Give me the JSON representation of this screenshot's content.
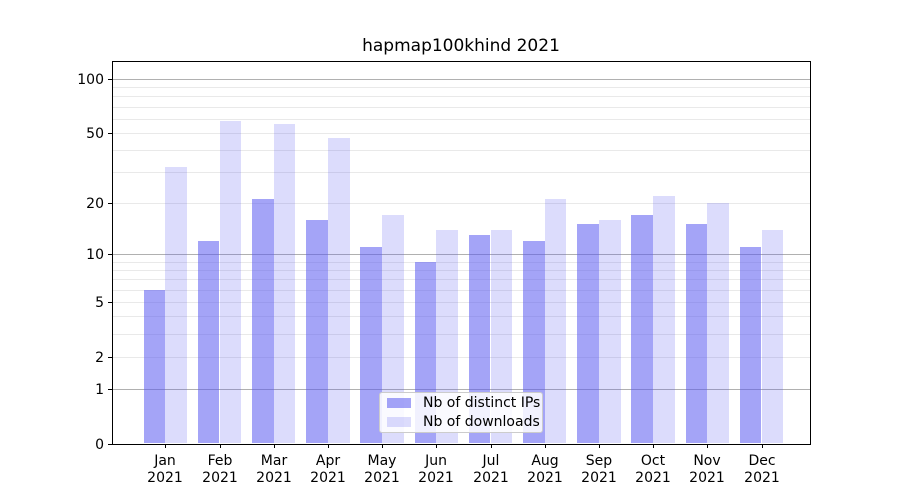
{
  "title": "hapmap100khind 2021",
  "colors": {
    "bar_ips": "rgba(90,90,240,0.55)",
    "bar_downloads": "rgba(90,90,240,0.21)",
    "grid_major": "#b0b0b0",
    "grid_minor": "#e9e9e9",
    "spine": "#000000",
    "text": "#000000",
    "legend_border": "#cccccc",
    "legend_bg": "rgba(255,255,255,0.85)"
  },
  "chart_data": {
    "type": "bar",
    "title": "hapmap100khind 2021",
    "categories": [
      "Jan 2021",
      "Feb 2021",
      "Mar 2021",
      "Apr 2021",
      "May 2021",
      "Jun 2021",
      "Jul 2021",
      "Aug 2021",
      "Sep 2021",
      "Oct 2021",
      "Nov 2021",
      "Dec 2021"
    ],
    "series": [
      {
        "name": "Nb of distinct IPs",
        "color_key": "bar_ips",
        "values": [
          6,
          12,
          21,
          16,
          11,
          9,
          13,
          12,
          15,
          17,
          15,
          11
        ]
      },
      {
        "name": "Nb of downloads",
        "color_key": "bar_downloads",
        "values": [
          32,
          58,
          56,
          47,
          17,
          14,
          14,
          21,
          16,
          22,
          20,
          14
        ]
      }
    ],
    "xlabel": "",
    "ylabel": "",
    "yscale": "log(1+y) symlog-like",
    "ylim": [
      0,
      126
    ],
    "yticks": {
      "values": [
        0,
        1,
        2,
        5,
        10,
        20,
        50,
        100
      ],
      "labels": [
        "0",
        "1",
        "2",
        "5",
        "10",
        "20",
        "50",
        "100"
      ]
    },
    "grid": {
      "major": [
        1,
        10,
        100
      ],
      "minor": [
        2,
        3,
        4,
        5,
        6,
        7,
        8,
        9,
        20,
        30,
        40,
        50,
        60,
        70,
        80,
        90
      ]
    },
    "legend_position": "lower center (inside axes)",
    "grid_on": true
  }
}
